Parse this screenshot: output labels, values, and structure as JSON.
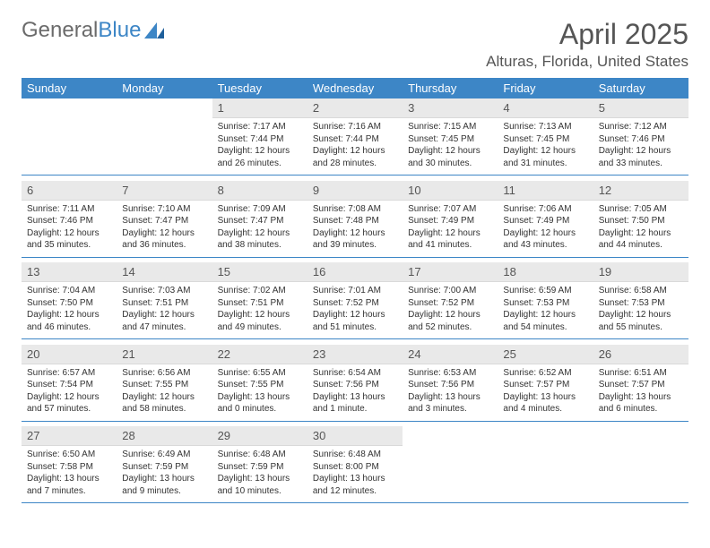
{
  "brand": {
    "part1": "General",
    "part2": "Blue"
  },
  "title": "April 2025",
  "location": "Alturas, Florida, United States",
  "colors": {
    "header_bg": "#3d86c6",
    "header_text": "#ffffff",
    "daynum_bg": "#e9e9e9",
    "rule": "#3d86c6",
    "page_bg": "#ffffff",
    "text": "#333333",
    "title_text": "#555555"
  },
  "dow": [
    "Sunday",
    "Monday",
    "Tuesday",
    "Wednesday",
    "Thursday",
    "Friday",
    "Saturday"
  ],
  "weeks": [
    [
      null,
      null,
      {
        "n": "1",
        "sr": "Sunrise: 7:17 AM",
        "ss": "Sunset: 7:44 PM",
        "dl": "Daylight: 12 hours and 26 minutes."
      },
      {
        "n": "2",
        "sr": "Sunrise: 7:16 AM",
        "ss": "Sunset: 7:44 PM",
        "dl": "Daylight: 12 hours and 28 minutes."
      },
      {
        "n": "3",
        "sr": "Sunrise: 7:15 AM",
        "ss": "Sunset: 7:45 PM",
        "dl": "Daylight: 12 hours and 30 minutes."
      },
      {
        "n": "4",
        "sr": "Sunrise: 7:13 AM",
        "ss": "Sunset: 7:45 PM",
        "dl": "Daylight: 12 hours and 31 minutes."
      },
      {
        "n": "5",
        "sr": "Sunrise: 7:12 AM",
        "ss": "Sunset: 7:46 PM",
        "dl": "Daylight: 12 hours and 33 minutes."
      }
    ],
    [
      {
        "n": "6",
        "sr": "Sunrise: 7:11 AM",
        "ss": "Sunset: 7:46 PM",
        "dl": "Daylight: 12 hours and 35 minutes."
      },
      {
        "n": "7",
        "sr": "Sunrise: 7:10 AM",
        "ss": "Sunset: 7:47 PM",
        "dl": "Daylight: 12 hours and 36 minutes."
      },
      {
        "n": "8",
        "sr": "Sunrise: 7:09 AM",
        "ss": "Sunset: 7:47 PM",
        "dl": "Daylight: 12 hours and 38 minutes."
      },
      {
        "n": "9",
        "sr": "Sunrise: 7:08 AM",
        "ss": "Sunset: 7:48 PM",
        "dl": "Daylight: 12 hours and 39 minutes."
      },
      {
        "n": "10",
        "sr": "Sunrise: 7:07 AM",
        "ss": "Sunset: 7:49 PM",
        "dl": "Daylight: 12 hours and 41 minutes."
      },
      {
        "n": "11",
        "sr": "Sunrise: 7:06 AM",
        "ss": "Sunset: 7:49 PM",
        "dl": "Daylight: 12 hours and 43 minutes."
      },
      {
        "n": "12",
        "sr": "Sunrise: 7:05 AM",
        "ss": "Sunset: 7:50 PM",
        "dl": "Daylight: 12 hours and 44 minutes."
      }
    ],
    [
      {
        "n": "13",
        "sr": "Sunrise: 7:04 AM",
        "ss": "Sunset: 7:50 PM",
        "dl": "Daylight: 12 hours and 46 minutes."
      },
      {
        "n": "14",
        "sr": "Sunrise: 7:03 AM",
        "ss": "Sunset: 7:51 PM",
        "dl": "Daylight: 12 hours and 47 minutes."
      },
      {
        "n": "15",
        "sr": "Sunrise: 7:02 AM",
        "ss": "Sunset: 7:51 PM",
        "dl": "Daylight: 12 hours and 49 minutes."
      },
      {
        "n": "16",
        "sr": "Sunrise: 7:01 AM",
        "ss": "Sunset: 7:52 PM",
        "dl": "Daylight: 12 hours and 51 minutes."
      },
      {
        "n": "17",
        "sr": "Sunrise: 7:00 AM",
        "ss": "Sunset: 7:52 PM",
        "dl": "Daylight: 12 hours and 52 minutes."
      },
      {
        "n": "18",
        "sr": "Sunrise: 6:59 AM",
        "ss": "Sunset: 7:53 PM",
        "dl": "Daylight: 12 hours and 54 minutes."
      },
      {
        "n": "19",
        "sr": "Sunrise: 6:58 AM",
        "ss": "Sunset: 7:53 PM",
        "dl": "Daylight: 12 hours and 55 minutes."
      }
    ],
    [
      {
        "n": "20",
        "sr": "Sunrise: 6:57 AM",
        "ss": "Sunset: 7:54 PM",
        "dl": "Daylight: 12 hours and 57 minutes."
      },
      {
        "n": "21",
        "sr": "Sunrise: 6:56 AM",
        "ss": "Sunset: 7:55 PM",
        "dl": "Daylight: 12 hours and 58 minutes."
      },
      {
        "n": "22",
        "sr": "Sunrise: 6:55 AM",
        "ss": "Sunset: 7:55 PM",
        "dl": "Daylight: 13 hours and 0 minutes."
      },
      {
        "n": "23",
        "sr": "Sunrise: 6:54 AM",
        "ss": "Sunset: 7:56 PM",
        "dl": "Daylight: 13 hours and 1 minute."
      },
      {
        "n": "24",
        "sr": "Sunrise: 6:53 AM",
        "ss": "Sunset: 7:56 PM",
        "dl": "Daylight: 13 hours and 3 minutes."
      },
      {
        "n": "25",
        "sr": "Sunrise: 6:52 AM",
        "ss": "Sunset: 7:57 PM",
        "dl": "Daylight: 13 hours and 4 minutes."
      },
      {
        "n": "26",
        "sr": "Sunrise: 6:51 AM",
        "ss": "Sunset: 7:57 PM",
        "dl": "Daylight: 13 hours and 6 minutes."
      }
    ],
    [
      {
        "n": "27",
        "sr": "Sunrise: 6:50 AM",
        "ss": "Sunset: 7:58 PM",
        "dl": "Daylight: 13 hours and 7 minutes."
      },
      {
        "n": "28",
        "sr": "Sunrise: 6:49 AM",
        "ss": "Sunset: 7:59 PM",
        "dl": "Daylight: 13 hours and 9 minutes."
      },
      {
        "n": "29",
        "sr": "Sunrise: 6:48 AM",
        "ss": "Sunset: 7:59 PM",
        "dl": "Daylight: 13 hours and 10 minutes."
      },
      {
        "n": "30",
        "sr": "Sunrise: 6:48 AM",
        "ss": "Sunset: 8:00 PM",
        "dl": "Daylight: 13 hours and 12 minutes."
      },
      null,
      null,
      null
    ]
  ]
}
